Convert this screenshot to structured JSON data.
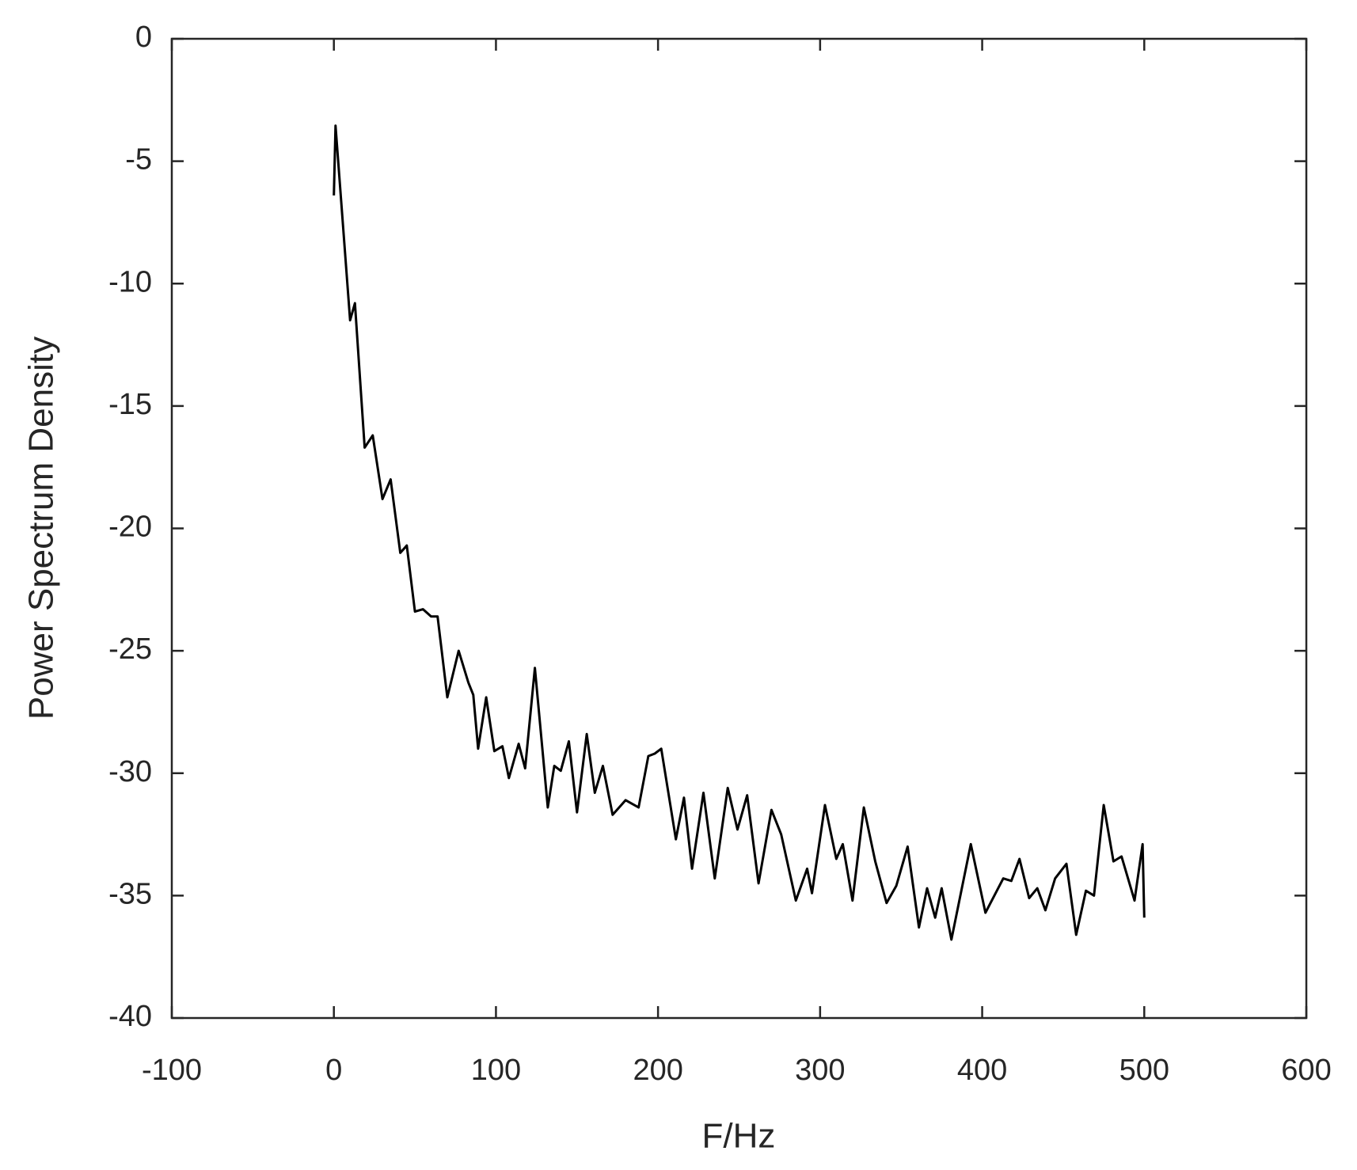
{
  "chart_data": {
    "type": "line",
    "x_label": "F/Hz",
    "y_label": "Power Spectrum Density",
    "xlim": [
      -100,
      600
    ],
    "xticks": [
      -100,
      0,
      100,
      200,
      300,
      400,
      500,
      600
    ],
    "ylim": [
      -40,
      0
    ],
    "yticks": [
      -40,
      -35,
      -30,
      -25,
      -20,
      -15,
      -10,
      -5,
      0
    ],
    "grid": false,
    "series": [
      {
        "color": "#000000",
        "x": [
          0,
          1,
          10,
          13,
          19,
          24,
          30,
          35,
          41,
          45,
          50,
          55,
          60,
          64,
          70,
          77,
          83,
          86,
          89,
          94,
          99,
          104,
          108,
          114,
          118,
          124,
          132,
          136,
          140,
          145,
          150,
          156,
          161,
          166,
          172,
          180,
          188,
          194,
          198,
          202,
          211,
          216,
          221,
          228,
          235,
          243,
          249,
          255,
          262,
          270,
          276,
          285,
          292,
          295,
          303,
          310,
          314,
          320,
          327,
          334,
          341,
          347,
          354,
          361,
          366,
          371,
          375,
          381,
          393,
          402,
          413,
          418,
          423,
          429,
          434,
          439,
          445,
          452,
          458,
          464,
          469,
          475,
          481,
          486,
          494,
          499,
          500
        ],
        "values": [
          -6.4,
          -3.55,
          -11.5,
          -10.8,
          -16.7,
          -16.2,
          -18.8,
          -18.0,
          -21.0,
          -20.7,
          -23.4,
          -23.3,
          -23.6,
          -23.6,
          -26.9,
          -25.0,
          -26.3,
          -26.8,
          -29.0,
          -26.9,
          -29.1,
          -28.9,
          -30.2,
          -28.8,
          -29.8,
          -25.7,
          -31.4,
          -29.7,
          -29.9,
          -28.7,
          -31.6,
          -28.4,
          -30.8,
          -29.7,
          -31.7,
          -31.1,
          -31.4,
          -29.3,
          -29.2,
          -29.0,
          -32.7,
          -31.0,
          -33.9,
          -30.8,
          -34.3,
          -30.6,
          -32.3,
          -30.9,
          -34.5,
          -31.5,
          -32.5,
          -35.2,
          -33.9,
          -34.9,
          -31.3,
          -33.5,
          -32.9,
          -35.2,
          -31.4,
          -33.6,
          -35.3,
          -34.6,
          -33.0,
          -36.3,
          -34.7,
          -35.9,
          -34.7,
          -36.8,
          -32.9,
          -35.7,
          -34.3,
          -34.4,
          -33.5,
          -35.1,
          -34.7,
          -35.6,
          -34.3,
          -33.7,
          -36.6,
          -34.8,
          -35.0,
          -31.3,
          -33.6,
          -33.4,
          -35.2,
          -32.9,
          -35.9
        ]
      }
    ]
  }
}
